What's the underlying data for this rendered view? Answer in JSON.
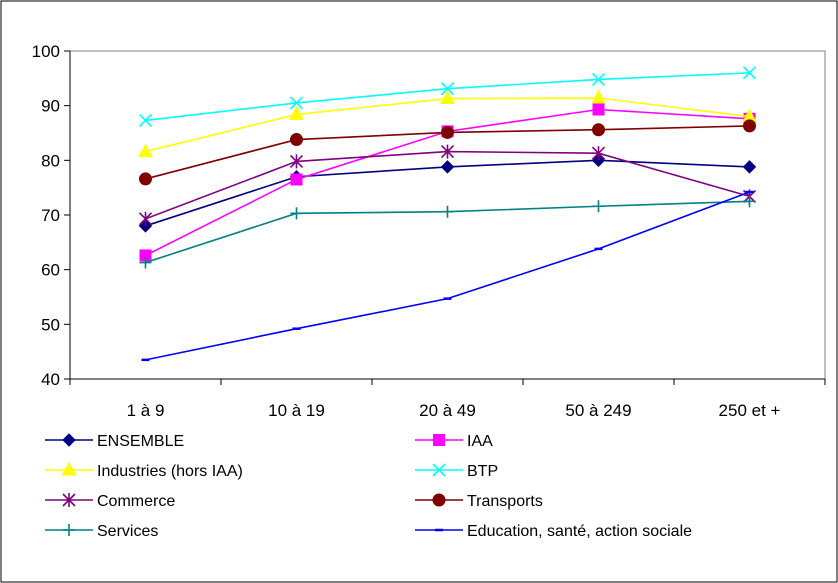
{
  "chart_data": {
    "type": "line",
    "title": "",
    "xlabel": "",
    "ylabel": "",
    "categories": [
      "1 à 9",
      "10 à 19",
      "20 à 49",
      "50 à 249",
      "250 et +"
    ],
    "ylim": [
      40,
      100
    ],
    "yticks": [
      40,
      50,
      60,
      70,
      80,
      90,
      100
    ],
    "grid": false,
    "legend_position": "bottom",
    "series": [
      {
        "name": "ENSEMBLE",
        "color": "#000080",
        "marker": "diamond",
        "values": [
          68.0,
          77.0,
          78.8,
          80.0,
          78.8
        ]
      },
      {
        "name": "IAA",
        "color": "#FF00FF",
        "marker": "square",
        "values": [
          62.6,
          76.5,
          85.3,
          89.3,
          87.6
        ]
      },
      {
        "name": "Industries (hors IAA)",
        "color": "#FFFF00",
        "marker": "triangle",
        "values": [
          81.6,
          88.4,
          91.3,
          91.4,
          88.0
        ]
      },
      {
        "name": "BTP",
        "color": "#00FFFF",
        "marker": "x",
        "values": [
          87.3,
          90.5,
          93.1,
          94.8,
          96.0
        ]
      },
      {
        "name": "Commerce",
        "color": "#800080",
        "marker": "star",
        "values": [
          69.3,
          79.8,
          81.6,
          81.3,
          73.4
        ]
      },
      {
        "name": "Transports",
        "color": "#800000",
        "marker": "circle",
        "values": [
          76.6,
          83.8,
          85.1,
          85.6,
          86.3
        ]
      },
      {
        "name": "Services",
        "color": "#008080",
        "marker": "plus",
        "values": [
          61.3,
          70.3,
          70.6,
          71.6,
          72.5
        ]
      },
      {
        "name": "Education, santé, action sociale",
        "color": "#0000FF",
        "marker": "dash",
        "values": [
          43.5,
          49.2,
          54.7,
          63.8,
          74.2
        ]
      }
    ]
  }
}
